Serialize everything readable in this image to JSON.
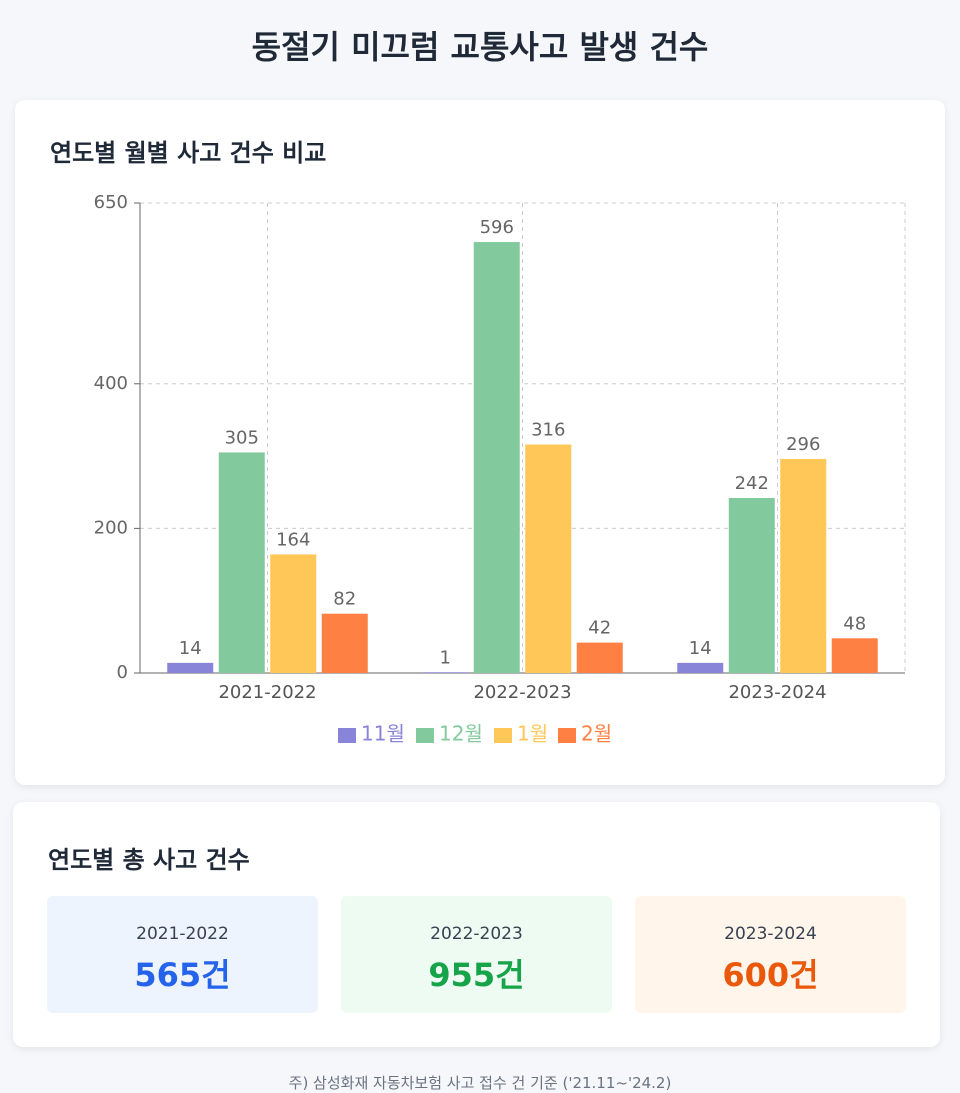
{
  "title": "동절기 미끄럼 교통사고 발생 건수",
  "chart_data": {
    "type": "bar",
    "title": "연도별 월별 사고 건수 비교",
    "categories": [
      "2021-2022",
      "2022-2023",
      "2023-2024"
    ],
    "series": [
      {
        "name": "11월",
        "color": "#8884d8",
        "values": [
          14,
          1,
          14
        ]
      },
      {
        "name": "12월",
        "color": "#82ca9d",
        "values": [
          305,
          596,
          242
        ]
      },
      {
        "name": "1월",
        "color": "#ffc658",
        "values": [
          164,
          316,
          296
        ]
      },
      {
        "name": "2월",
        "color": "#ff8042",
        "values": [
          82,
          42,
          48
        ]
      }
    ],
    "ylim": [
      0,
      650
    ],
    "yticks": [
      0,
      200,
      400,
      650
    ],
    "grid": true,
    "legend": "bottom"
  },
  "summary": {
    "title": "연도별 총 사고 건수",
    "items": [
      {
        "label": "2021-2022",
        "value": "565건"
      },
      {
        "label": "2022-2023",
        "value": "955건"
      },
      {
        "label": "2023-2024",
        "value": "600건"
      }
    ]
  },
  "footnote": "주) 삼성화재 자동차보험 사고 접수 건 기준 ('21.11~'24.2)"
}
